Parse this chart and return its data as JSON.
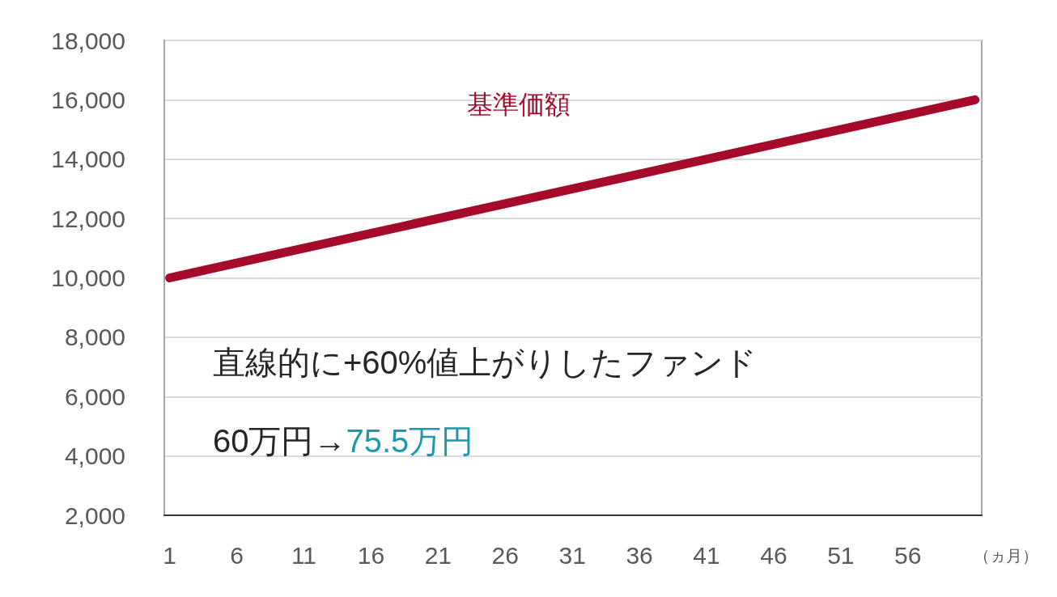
{
  "chart_data": {
    "type": "line",
    "xlabel": "（ヵ月）",
    "series": [
      {
        "name": "基準価額",
        "color": "#a50a2a",
        "x": [
          1,
          61
        ],
        "values": [
          10000,
          16000
        ]
      }
    ],
    "xlim": [
      0.6,
      61.5
    ],
    "xticks": [
      1,
      6,
      11,
      16,
      21,
      26,
      31,
      36,
      41,
      46,
      51,
      56
    ],
    "ylim": [
      2000,
      18000
    ],
    "yticks": [
      {
        "value": 2000,
        "label": "2,000"
      },
      {
        "value": 4000,
        "label": "4,000"
      },
      {
        "value": 6000,
        "label": "6,000"
      },
      {
        "value": 8000,
        "label": "8,000"
      },
      {
        "value": 10000,
        "label": "10,000"
      },
      {
        "value": 12000,
        "label": "12,000"
      },
      {
        "value": 14000,
        "label": "14,000"
      },
      {
        "value": 16000,
        "label": "16,000"
      },
      {
        "value": 18000,
        "label": "18,000"
      }
    ],
    "grid": "y",
    "line_style": "solid",
    "annotations": [
      "直線的に+60%値上がりしたファンド",
      "60万円→",
      "75.5万円"
    ]
  }
}
